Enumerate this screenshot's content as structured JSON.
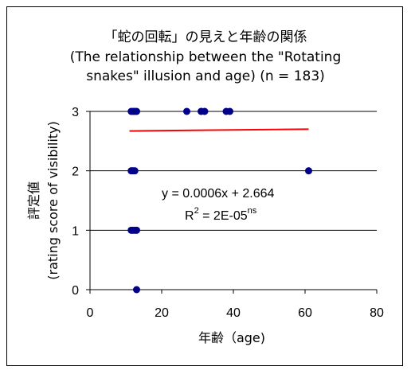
{
  "chart_data": {
    "type": "scatter",
    "title": [
      "「蛇の回転」の見えと年齢の関係",
      "(The relationship between the \"Rotating",
      "snakes\" illusion and age) (n = 183)"
    ],
    "xlabel": "年齢（age)",
    "ylabel": [
      "評定値",
      "(rating score of visibility)"
    ],
    "xlim": [
      0,
      80
    ],
    "ylim": [
      0,
      3
    ],
    "xticks": [
      0,
      20,
      40,
      60,
      80
    ],
    "yticks": [
      0,
      1,
      2,
      3
    ],
    "grid": "horizontal",
    "series": [
      {
        "points": [
          [
            11.5,
            3
          ],
          [
            12,
            3
          ],
          [
            12.5,
            3
          ],
          [
            13,
            3
          ],
          [
            27,
            3
          ],
          [
            31,
            3
          ],
          [
            32,
            3
          ],
          [
            38,
            3
          ],
          [
            39,
            3
          ],
          [
            11.5,
            2
          ],
          [
            12,
            2
          ],
          [
            12.5,
            2
          ],
          [
            61,
            2
          ],
          [
            11.5,
            1
          ],
          [
            12,
            1
          ],
          [
            12.5,
            1
          ],
          [
            13,
            1
          ],
          [
            13,
            0
          ]
        ],
        "color": "#00008b"
      }
    ],
    "trendline": {
      "slope": 0.0006,
      "intercept": 2.664,
      "x_range": [
        11,
        61
      ],
      "color": "#ff0000"
    },
    "annotations": {
      "equation": "y = 0.0006x + 2.664",
      "r2_prefix": "R",
      "r2_exp": "2",
      "r2_value": " = 2E-05",
      "r2_suffix": "ns"
    }
  }
}
